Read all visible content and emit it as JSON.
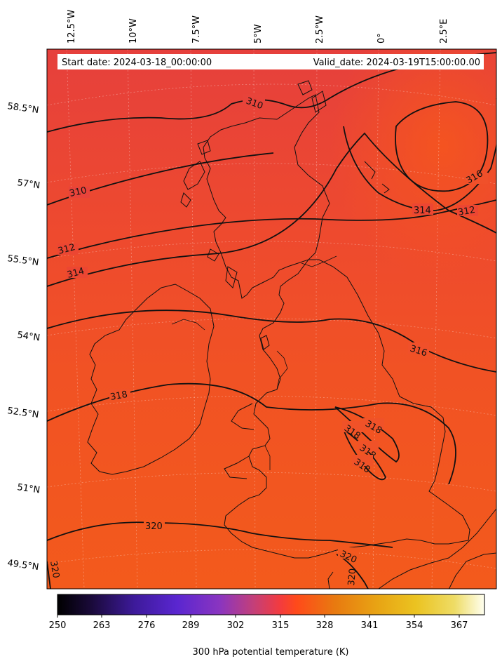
{
  "header": {
    "start_date": "Start date: 2024-03-18_00:00:00",
    "valid_date": "Valid_date: 2024-03-19T15:00:00.00"
  },
  "lon_ticks": [
    "12.5°W",
    "10°W",
    "7.5°W",
    "5°W",
    "2.5°W",
    "0°",
    "2.5°E"
  ],
  "lat_ticks": [
    "58.5°N",
    "57°N",
    "55.5°N",
    "54°N",
    "52.5°N",
    "51°N",
    "49.5°N"
  ],
  "contour_labels": [
    "310",
    "310",
    "312",
    "314",
    "316",
    "314",
    "312",
    "316",
    "318",
    "318",
    "318",
    "318",
    "318",
    "320",
    "320",
    "320",
    "320"
  ],
  "colorbar": {
    "ticks": [
      "250",
      "263",
      "276",
      "289",
      "302",
      "315",
      "328",
      "341",
      "354",
      "367"
    ],
    "label": "300 hPa potential temperature (K)",
    "colormap_stops": [
      "#000000",
      "#1a0a3a",
      "#3d1a9a",
      "#5a26d0",
      "#8a35c0",
      "#c43f78",
      "#f23b40",
      "#ff4a1a",
      "#e87a10",
      "#e8a414",
      "#ebc321",
      "#eedc66",
      "#fffff0"
    ]
  },
  "field_colors": {
    "north": "#e8433a",
    "middle": "#f0502a",
    "south": "#f25a1e"
  }
}
